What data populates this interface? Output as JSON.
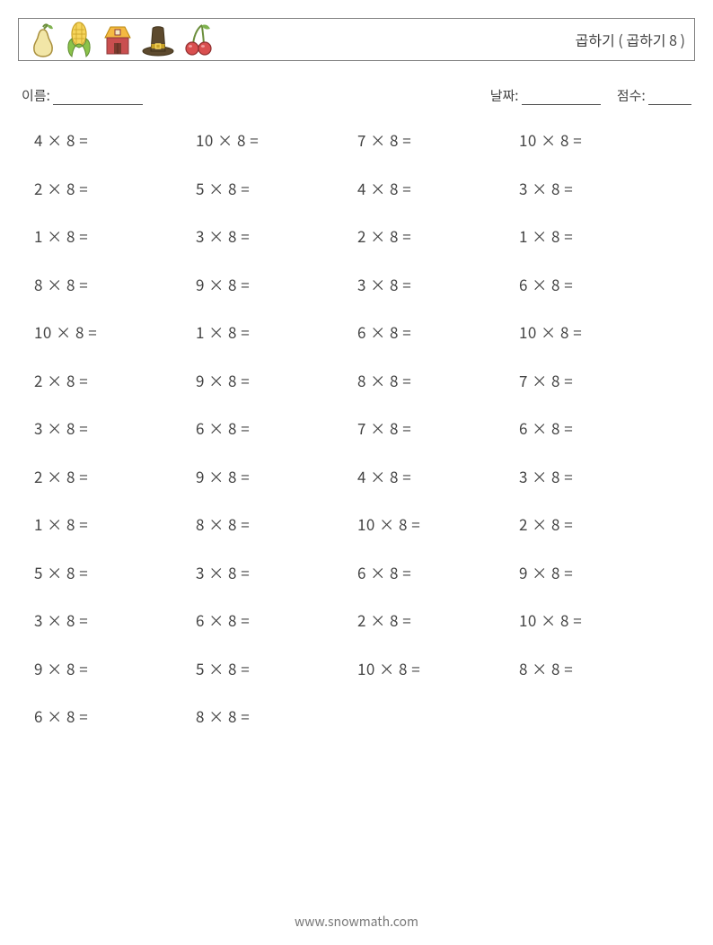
{
  "header": {
    "title": "곱하기 ( 곱하기 8 )",
    "icons": [
      "pear",
      "corn",
      "barn",
      "pilgrim-hat",
      "cherries"
    ]
  },
  "meta": {
    "name_label": "이름:",
    "date_label": "날짜:",
    "score_label": "점수:"
  },
  "layout": {
    "columns": 4,
    "rows": 13
  },
  "problems": [
    [
      "4 × 8 =",
      "10 × 8 =",
      "7 × 8 =",
      "10 × 8 ="
    ],
    [
      "2 × 8 =",
      "5 × 8 =",
      "4 × 8 =",
      "3 × 8 ="
    ],
    [
      "1 × 8 =",
      "3 × 8 =",
      "2 × 8 =",
      "1 × 8 ="
    ],
    [
      "8 × 8 =",
      "9 × 8 =",
      "3 × 8 =",
      "6 × 8 ="
    ],
    [
      "10 × 8 =",
      "1 × 8 =",
      "6 × 8 =",
      "10 × 8 ="
    ],
    [
      "2 × 8 =",
      "9 × 8 =",
      "8 × 8 =",
      "7 × 8 ="
    ],
    [
      "3 × 8 =",
      "6 × 8 =",
      "7 × 8 =",
      "6 × 8 ="
    ],
    [
      "2 × 8 =",
      "9 × 8 =",
      "4 × 8 =",
      "3 × 8 ="
    ],
    [
      "1 × 8 =",
      "8 × 8 =",
      "10 × 8 =",
      "2 × 8 ="
    ],
    [
      "5 × 8 =",
      "3 × 8 =",
      "6 × 8 =",
      "9 × 8 ="
    ],
    [
      "3 × 8 =",
      "6 × 8 =",
      "2 × 8 =",
      "10 × 8 ="
    ],
    [
      "9 × 8 =",
      "5 × 8 =",
      "10 × 8 =",
      "8 × 8 ="
    ],
    [
      "6 × 8 =",
      "8 × 8 =",
      "",
      ""
    ]
  ],
  "footer": {
    "url": "www.snowmath.com"
  },
  "colors": {
    "text": "#444444",
    "border": "#808080",
    "background": "#ffffff",
    "footer_text": "#777777",
    "pear_fill": "#f2e6a7",
    "pear_stroke": "#a98f3c",
    "pear_leaf": "#7fb24f",
    "corn_fill": "#f6d55c",
    "corn_stroke": "#c9a227",
    "corn_husk": "#8bc34a",
    "barn_roof": "#f4b942",
    "barn_wall": "#c94f4f",
    "barn_door": "#7a3b2e",
    "hat_fill": "#5d4a2e",
    "hat_band": "#c9a227",
    "hat_buckle": "#f6d55c",
    "cherry_fill": "#d94f4f",
    "cherry_stroke": "#8f2f2f",
    "cherry_stem": "#6b8e3b"
  },
  "typography": {
    "title_fontsize": 16,
    "body_fontsize": 17,
    "meta_fontsize": 15,
    "footer_fontsize": 14
  }
}
